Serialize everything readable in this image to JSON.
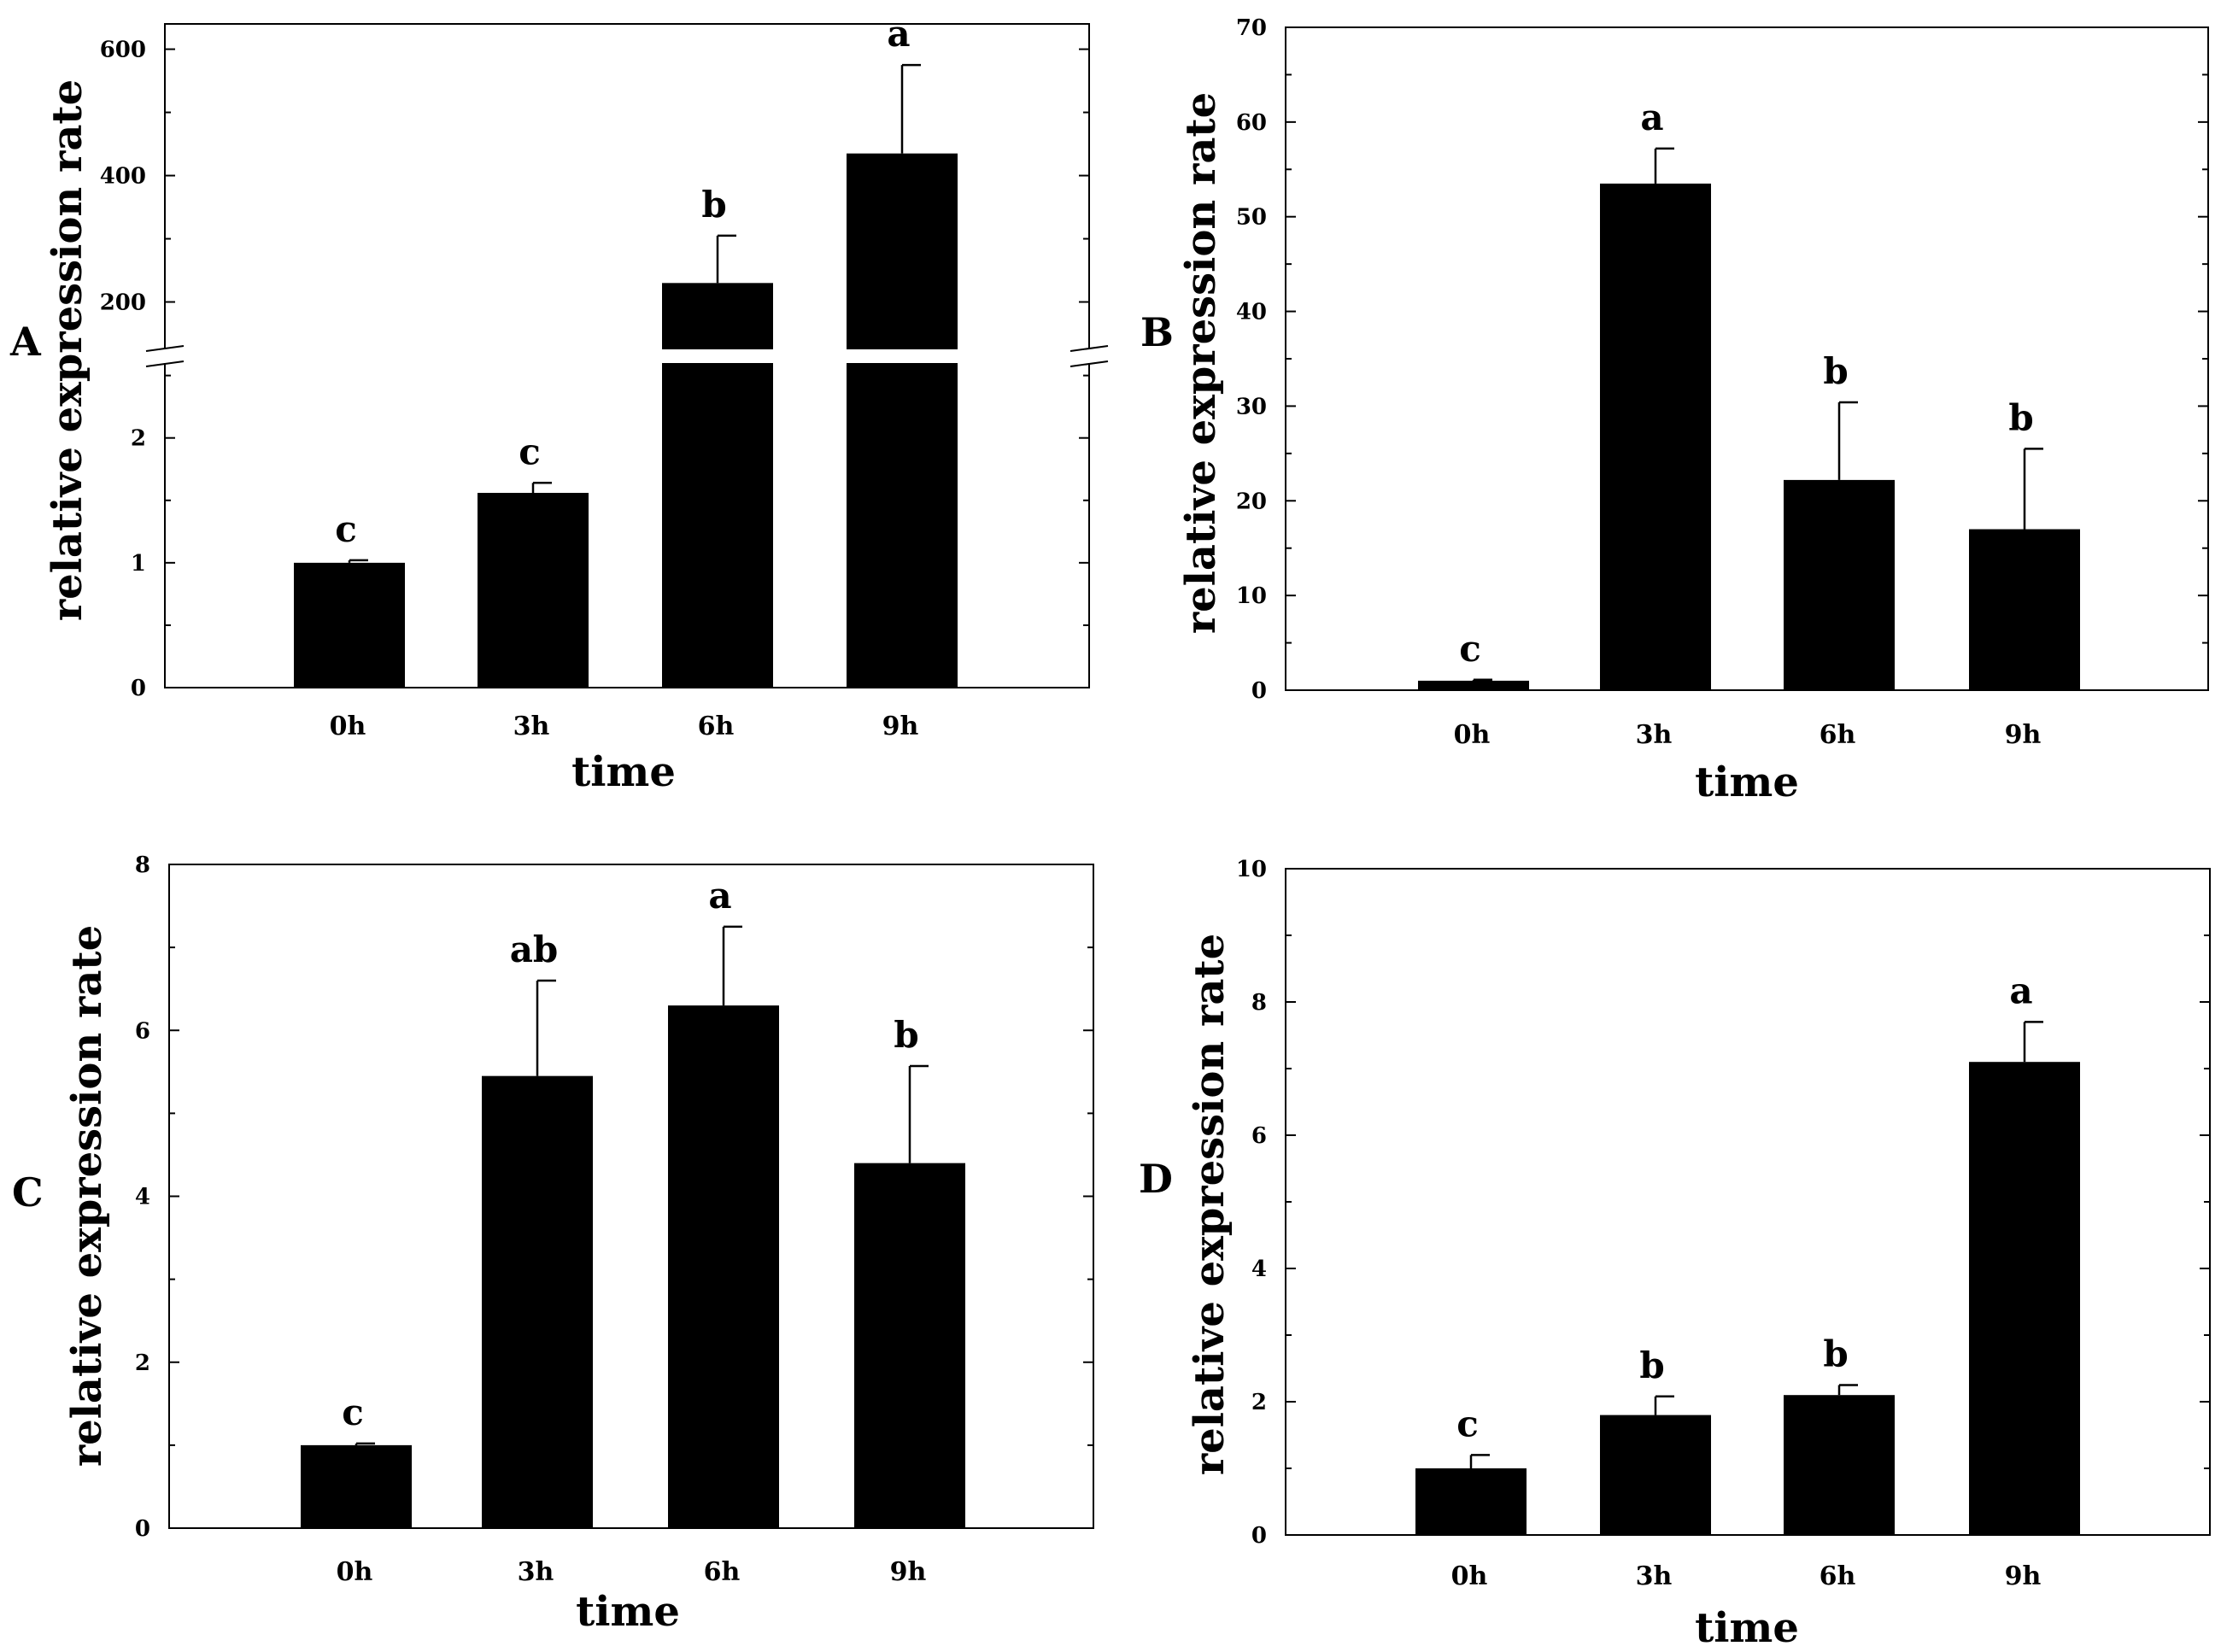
{
  "chart_data": [
    {
      "panel": "A",
      "type": "bar",
      "xlabel": "time",
      "ylabel": "relative expression rate",
      "categories": [
        "0h",
        "3h",
        "6h",
        "9h"
      ],
      "values": [
        1.0,
        1.56,
        230,
        435
      ],
      "errors": [
        0.02,
        0.08,
        75,
        140
      ],
      "letters": [
        "c",
        "c",
        "b",
        "a"
      ],
      "broken_axis": true,
      "lower": {
        "ylim": [
          0,
          2.6
        ],
        "ticks": [
          0,
          1,
          2
        ],
        "tick_labels": [
          "0",
          "1",
          "2"
        ]
      },
      "upper": {
        "ylim": [
          125,
          640
        ],
        "ticks": [
          200,
          400,
          600
        ],
        "tick_labels": [
          "200",
          "400",
          "600"
        ]
      }
    },
    {
      "panel": "B",
      "type": "bar",
      "xlabel": "time",
      "ylabel": "relative expression rate",
      "categories": [
        "0h",
        "3h",
        "6h",
        "9h"
      ],
      "values": [
        1.0,
        53.5,
        22.2,
        17.0
      ],
      "errors": [
        0.1,
        3.7,
        8.2,
        8.5
      ],
      "letters": [
        "c",
        "a",
        "b",
        "b"
      ],
      "ylim": [
        0,
        70
      ],
      "ticks": [
        0,
        10,
        20,
        30,
        40,
        50,
        60,
        70
      ],
      "tick_labels": [
        "0",
        "10",
        "20",
        "30",
        "40",
        "50",
        "60",
        "70"
      ]
    },
    {
      "panel": "C",
      "type": "bar",
      "xlabel": "time",
      "ylabel": "relative expression rate",
      "categories": [
        "0h",
        "3h",
        "6h",
        "9h"
      ],
      "values": [
        1.0,
        5.45,
        6.3,
        4.4
      ],
      "errors": [
        0.02,
        1.15,
        0.95,
        1.17
      ],
      "letters": [
        "c",
        "ab",
        "a",
        "b"
      ],
      "ylim": [
        0,
        8
      ],
      "ticks": [
        0,
        2,
        4,
        6,
        8
      ],
      "tick_labels": [
        "0",
        "2",
        "4",
        "6",
        "8"
      ]
    },
    {
      "panel": "D",
      "type": "bar",
      "xlabel": "time",
      "ylabel": "relative expression rate",
      "categories": [
        "0h",
        "3h",
        "6h",
        "9h"
      ],
      "values": [
        1.0,
        1.8,
        2.1,
        7.1
      ],
      "errors": [
        0.2,
        0.28,
        0.15,
        0.6
      ],
      "letters": [
        "c",
        "b",
        "b",
        "a"
      ],
      "ylim": [
        0,
        10
      ],
      "ticks": [
        0,
        2,
        4,
        6,
        8,
        10
      ],
      "tick_labels": [
        "0",
        "2",
        "4",
        "6",
        "8",
        "10"
      ]
    }
  ],
  "colors": {
    "bar": "#000000",
    "axis": "#000000",
    "background": "#ffffff"
  }
}
